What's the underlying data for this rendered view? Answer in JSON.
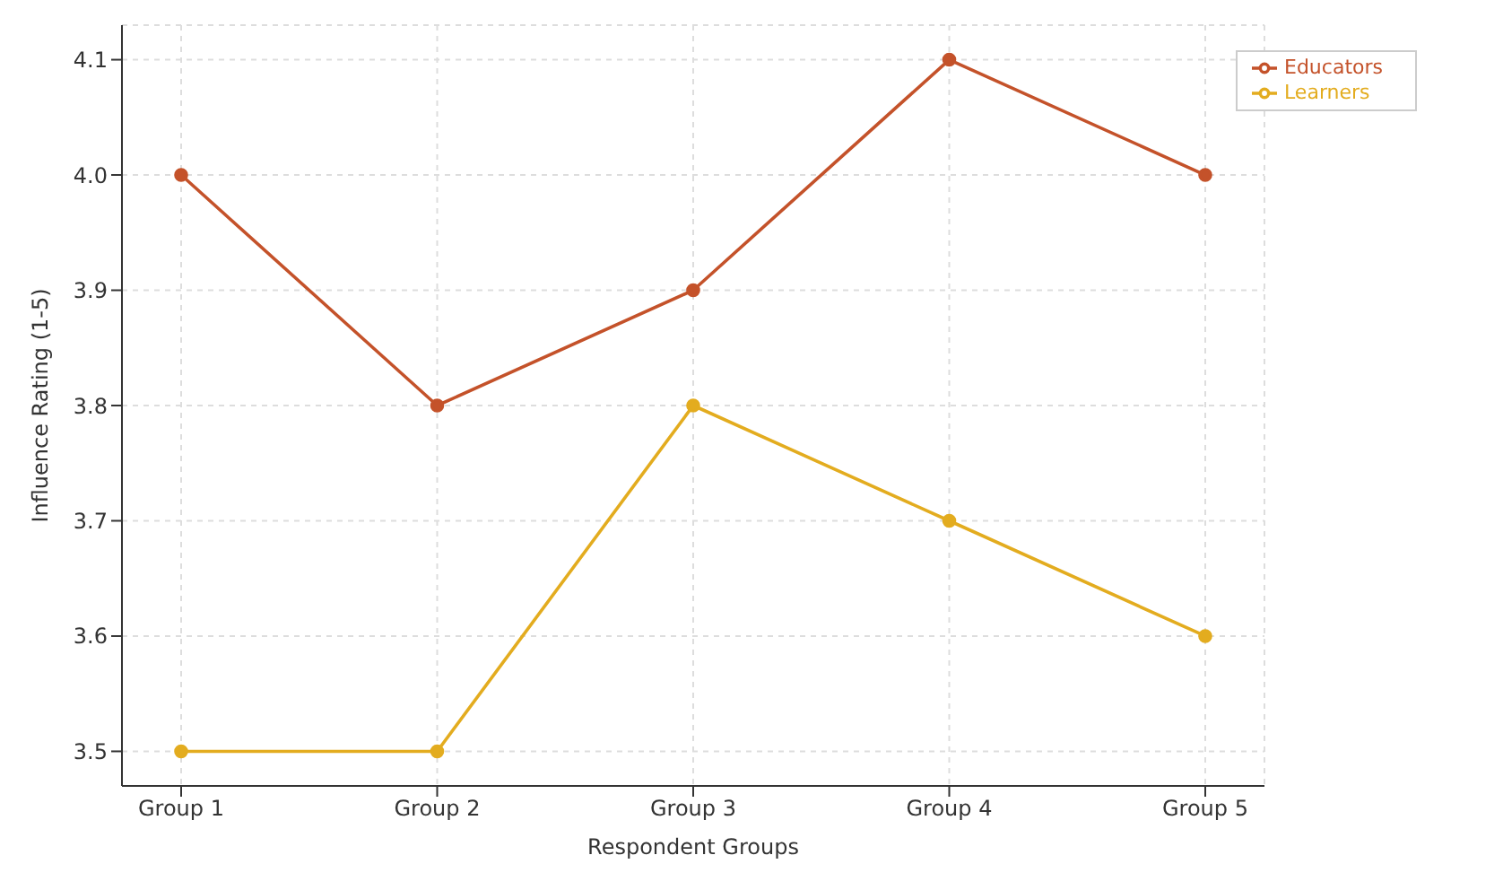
{
  "chart_data": {
    "type": "line",
    "xlabel": "Respondent Groups",
    "ylabel": "Influence Rating (1-5)",
    "categories": [
      "Group 1",
      "Group 2",
      "Group 3",
      "Group 4",
      "Group 5"
    ],
    "series": [
      {
        "name": "Learners",
        "color": "#e3ac1f",
        "values": [
          3.5,
          3.5,
          3.8,
          3.7,
          3.6
        ]
      },
      {
        "name": "Educators",
        "color": "#c4522a",
        "values": [
          4.0,
          3.8,
          3.9,
          4.1,
          4.0
        ]
      }
    ],
    "ylim": [
      3.47,
      4.13
    ],
    "yticks": [
      3.5,
      3.6,
      3.7,
      3.8,
      3.9,
      {
        "value": 4.0,
        "label": "4.0"
      },
      4.1
    ],
    "grid": true,
    "legend": "top right",
    "marker": "circle",
    "line_style": "solid"
  }
}
